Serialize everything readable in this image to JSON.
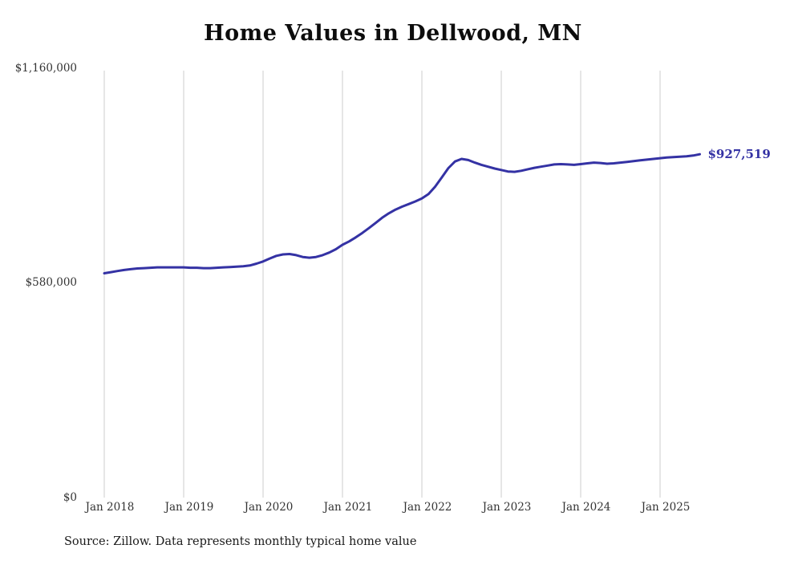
{
  "chart": {
    "title": "Home Values in Dellwood, MN",
    "end_label": "$927,519",
    "source": "Source: Zillow. Data represents monthly typical home value",
    "y_tick_labels": [
      "$1,160,000",
      "$580,000",
      "$0"
    ],
    "colors": {
      "line": "#3432a4",
      "grid": "#cccccc",
      "title": "#0d0d0d",
      "axis_text": "#333333",
      "background": "#ffffff"
    }
  },
  "chart_data": {
    "type": "line",
    "title": "Home Values in Dellwood, MN",
    "x_start": "2018-01",
    "frequency": "monthly",
    "x_tick_labels": [
      "Jan 2018",
      "Jan 2019",
      "Jan 2020",
      "Jan 2021",
      "Jan 2022",
      "Jan 2023",
      "Jan 2024",
      "Jan 2025"
    ],
    "y_tick_labels": [
      "$1,160,000",
      "$580,000",
      "$0"
    ],
    "ylim": [
      0,
      1160000
    ],
    "grid": "vertical",
    "legend": "none",
    "annotation": {
      "text": "$927,519",
      "value": 927519,
      "position": "line-end"
    },
    "series": [
      {
        "name": "Typical home value",
        "color": "#3432a4",
        "values": [
          606000,
          609000,
          612000,
          615000,
          617000,
          619000,
          620000,
          621000,
          622000,
          622000,
          622000,
          622000,
          622000,
          621000,
          621000,
          620000,
          620000,
          621000,
          622000,
          623000,
          624000,
          625000,
          627000,
          632000,
          638000,
          646000,
          653000,
          657000,
          658000,
          655000,
          650000,
          648000,
          650000,
          655000,
          662000,
          671000,
          683000,
          692000,
          703000,
          715000,
          728000,
          742000,
          756000,
          768000,
          778000,
          786000,
          793000,
          800000,
          808000,
          820000,
          840000,
          865000,
          890000,
          908000,
          915000,
          912000,
          905000,
          899000,
          894000,
          889000,
          885000,
          881000,
          880000,
          883000,
          887000,
          891000,
          894000,
          897000,
          900000,
          901000,
          900000,
          899000,
          901000,
          903000,
          905000,
          904000,
          902000,
          903000,
          905000,
          907000,
          909000,
          911000,
          913000,
          915000,
          917000,
          919000,
          920000,
          921000,
          922000,
          924000,
          927519
        ]
      }
    ]
  }
}
